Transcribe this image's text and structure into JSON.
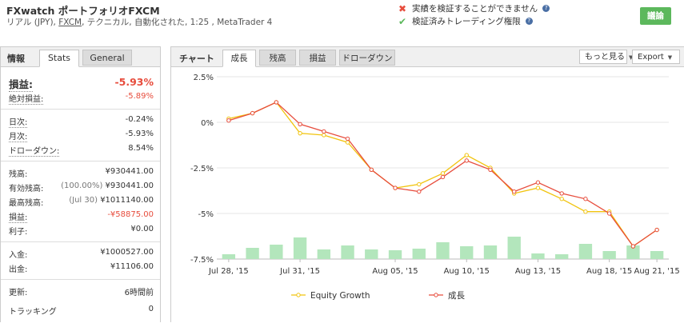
{
  "header": {
    "title": "FXwatch ポートフォリオFXCM",
    "sub_prefix": "リアル (JPY), ",
    "sub_link": "FXCM",
    "sub_suffix": ", テクニカル, 自動化された, 1:25 , MetaTrader 4",
    "warning_unverified": "実績を検証することができません",
    "verified_trading": "検証済みトレーディング権限",
    "help_glyph": "?",
    "discuss_button": "議論"
  },
  "left_panel": {
    "title": "情報",
    "tab_stats": "Stats",
    "tab_general": "General",
    "gain_label": "損益:",
    "gain_value": "-5.93%",
    "abs_gain_label": "絶対損益:",
    "abs_gain_value": "-5.89%",
    "daily_label": "日次:",
    "daily_value": "-0.24%",
    "monthly_label": "月次:",
    "monthly_value": "-5.93%",
    "drawdown_label": "ドローダウン:",
    "drawdown_value": "8.54%",
    "balance_label": "残高:",
    "balance_value": "¥930441.00",
    "equity_label": "有効残高:",
    "equity_pct": "(100.00%)",
    "equity_value": "¥930441.00",
    "highest_label": "最高残高:",
    "highest_date": "(Jul 30)",
    "highest_value": "¥1011140.00",
    "profit_label": "損益:",
    "profit_value": "-¥58875.00",
    "interest_label": "利子:",
    "interest_value": "¥0.00",
    "deposits_label": "入金:",
    "deposits_value": "¥1000527.00",
    "withdrawals_label": "出金:",
    "withdrawals_value": "¥11106.00",
    "updated_label": "更新:",
    "updated_value": "6時間前",
    "tracking_label": "トラッキング",
    "tracking_value": "0"
  },
  "right_panel": {
    "title": "チャート",
    "tabs": [
      "成長",
      "残高",
      "損益",
      "ドローダウン"
    ],
    "more_button": "もっと見る",
    "export_button": "Export"
  },
  "chart_data": {
    "type": "line",
    "x_tick_labels": [
      "Jul 28, '15",
      "Jul 31, '15",
      "Aug 05, '15",
      "Aug 10, '15",
      "Aug 13, '15",
      "Aug 18, '15",
      "Aug 21, '15"
    ],
    "y_tick_labels": [
      "2.5%",
      "0%",
      "-2.5%",
      "-5%",
      "-7.5%"
    ],
    "ylim": [
      -7.5,
      2.5
    ],
    "grid": true,
    "legend_position": "bottom",
    "series": [
      {
        "name": "Equity Growth",
        "color": "#f1c40f",
        "values": [
          0.2,
          0.5,
          1.1,
          -0.6,
          -0.7,
          -1.1,
          -2.6,
          -3.6,
          -3.4,
          -2.8,
          -1.8,
          -2.5,
          -3.9,
          -3.6,
          -4.2,
          -4.9,
          -4.9,
          -6.8,
          -5.9
        ]
      },
      {
        "name": "成長",
        "color": "#e74c3c",
        "values": [
          0.1,
          0.5,
          1.1,
          -0.1,
          -0.5,
          -0.9,
          -2.6,
          -3.6,
          -3.8,
          -3.0,
          -2.1,
          -2.6,
          -3.8,
          -3.3,
          -3.9,
          -4.2,
          -5.0,
          -6.8,
          -5.9
        ]
      }
    ],
    "bars": {
      "color": "#b3e6bc",
      "values": [
        0.6,
        1.4,
        1.8,
        2.7,
        1.2,
        1.7,
        1.2,
        1.1,
        1.3,
        2.1,
        1.6,
        1.7,
        2.8,
        0.7,
        0.6,
        1.9,
        1.0,
        1.7,
        1.0
      ]
    }
  }
}
